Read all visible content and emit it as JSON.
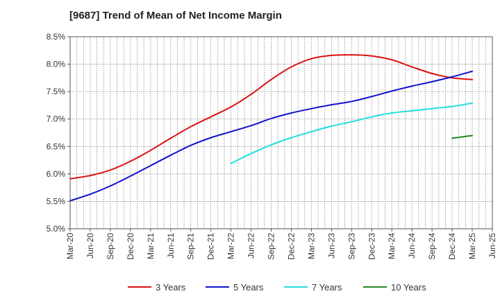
{
  "chart_data": {
    "type": "line",
    "title": "[9687]  Trend of Mean of Net Income Margin",
    "xlabel": "",
    "ylabel": "",
    "x_ticks": [
      "Mar-20",
      "Jun-20",
      "Sep-20",
      "Dec-20",
      "Mar-21",
      "Jun-21",
      "Sep-21",
      "Dec-21",
      "Mar-22",
      "Jun-22",
      "Sep-22",
      "Dec-22",
      "Mar-23",
      "Jun-23",
      "Sep-23",
      "Dec-23",
      "Mar-24",
      "Jun-24",
      "Sep-24",
      "Dec-24",
      "Mar-25",
      "Jun-25"
    ],
    "y_ticks": [
      "5.0%",
      "5.5%",
      "6.0%",
      "6.5%",
      "7.0%",
      "7.5%",
      "8.0%",
      "8.5%"
    ],
    "ylim": [
      5.0,
      8.5
    ],
    "grid": true,
    "legend_position": "bottom",
    "series": [
      {
        "name": "3 Years",
        "color": "#dd1111",
        "x": [
          "Mar-20",
          "Jun-20",
          "Sep-20",
          "Dec-20",
          "Mar-21",
          "Jun-21",
          "Sep-21",
          "Dec-21",
          "Mar-22",
          "Jun-22",
          "Sep-22",
          "Dec-22",
          "Mar-23",
          "Jun-23",
          "Sep-23",
          "Dec-23",
          "Mar-24",
          "Jun-24",
          "Sep-24",
          "Dec-24",
          "Mar-25"
        ],
        "values": [
          5.91,
          5.97,
          6.07,
          6.23,
          6.43,
          6.65,
          6.86,
          7.04,
          7.22,
          7.45,
          7.72,
          7.95,
          8.1,
          8.16,
          8.17,
          8.15,
          8.08,
          7.95,
          7.83,
          7.75,
          7.72
        ]
      },
      {
        "name": "5 Years",
        "color": "#1111cc",
        "x": [
          "Mar-20",
          "Jun-20",
          "Sep-20",
          "Dec-20",
          "Mar-21",
          "Jun-21",
          "Sep-21",
          "Dec-21",
          "Mar-22",
          "Jun-22",
          "Sep-22",
          "Dec-22",
          "Mar-23",
          "Jun-23",
          "Sep-23",
          "Dec-23",
          "Mar-24",
          "Jun-24",
          "Sep-24",
          "Dec-24",
          "Mar-25"
        ],
        "values": [
          5.51,
          5.63,
          5.78,
          5.96,
          6.15,
          6.34,
          6.52,
          6.66,
          6.77,
          6.88,
          7.01,
          7.11,
          7.19,
          7.26,
          7.32,
          7.41,
          7.51,
          7.6,
          7.68,
          7.77,
          7.87
        ]
      },
      {
        "name": "7 Years",
        "color": "#22dddd",
        "x": [
          "Mar-22",
          "Jun-22",
          "Sep-22",
          "Dec-22",
          "Mar-23",
          "Jun-23",
          "Sep-23",
          "Dec-23",
          "Mar-24",
          "Jun-24",
          "Sep-24",
          "Dec-24",
          "Mar-25"
        ],
        "values": [
          6.19,
          6.37,
          6.53,
          6.66,
          6.77,
          6.87,
          6.95,
          7.04,
          7.11,
          7.15,
          7.19,
          7.23,
          7.29
        ]
      },
      {
        "name": "10 Years",
        "color": "#228822",
        "x": [
          "Dec-24",
          "Mar-25"
        ],
        "values": [
          6.65,
          6.7
        ]
      }
    ]
  }
}
